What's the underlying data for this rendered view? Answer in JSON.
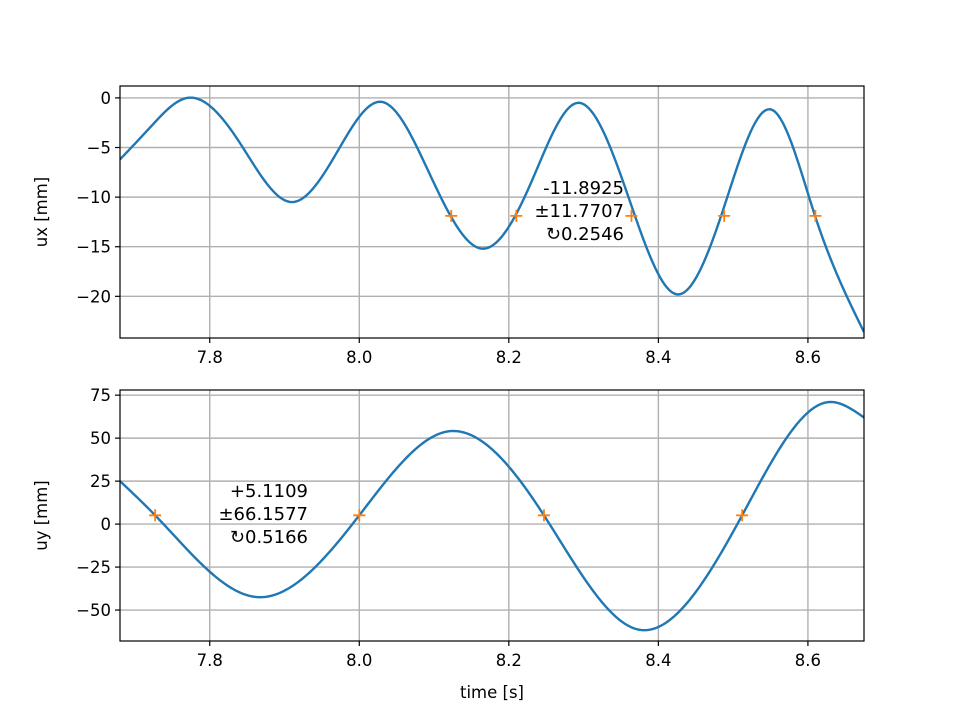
{
  "colors": {
    "curve": "#1f77b4",
    "marker": "#ff7f0e",
    "grid": "#b0b0b0"
  },
  "chart_data": [
    {
      "type": "line",
      "ylabel": "ux [mm]",
      "xlabel": "",
      "xlim": [
        7.68,
        8.675
      ],
      "ylim": [
        -24.2,
        1.2
      ],
      "grid": true,
      "xticks": [
        7.8,
        8.0,
        8.2,
        8.4,
        8.6
      ],
      "yticks": [
        0,
        -5,
        -10,
        -15,
        -20
      ],
      "xtick_labels": [
        "7.8",
        "8.0",
        "8.2",
        "8.4",
        "8.6"
      ],
      "ytick_labels": [
        "0",
        "−5",
        "−10",
        "−15",
        "−20"
      ],
      "series": [
        {
          "x": [
            7.68,
            7.72,
            7.77,
            7.84,
            7.91,
            7.97,
            8.03,
            8.09,
            8.165,
            8.23,
            8.292,
            8.36,
            8.425,
            8.49,
            8.552,
            8.61,
            8.675
          ],
          "values": [
            -6.2,
            -3.0,
            0.0,
            -4.5,
            -10.5,
            -5.5,
            -0.4,
            -7.0,
            -15.2,
            -8.5,
            -0.5,
            -10.0,
            -19.8,
            -10.5,
            -1.2,
            -12.0,
            -23.6
          ]
        }
      ],
      "markers": {
        "x": [
          8.123,
          8.21,
          8.364,
          8.488,
          8.61
        ],
        "y": [
          -11.8925,
          -11.8925,
          -11.8925,
          -11.8925,
          -11.8925
        ]
      },
      "annotation": {
        "lines": [
          "-11.8925",
          "±11.7707",
          "↻0.2546"
        ]
      }
    },
    {
      "type": "line",
      "ylabel": "uy [mm]",
      "xlabel": "time [s]",
      "xlim": [
        7.68,
        8.675
      ],
      "ylim": [
        -68,
        78
      ],
      "grid": true,
      "xticks": [
        7.8,
        8.0,
        8.2,
        8.4,
        8.6
      ],
      "yticks": [
        75,
        50,
        25,
        0,
        -25,
        -50
      ],
      "xtick_labels": [
        "7.8",
        "8.0",
        "8.2",
        "8.4",
        "8.6"
      ],
      "ytick_labels": [
        "75",
        "50",
        "25",
        "0",
        "−25",
        "−50"
      ],
      "series": [
        {
          "x": [
            7.68,
            7.727,
            7.865,
            8.0,
            8.12,
            8.247,
            8.375,
            8.512,
            8.628,
            8.675
          ],
          "values": [
            25.0,
            5.1,
            -42.5,
            5.1,
            54.0,
            5.1,
            -61.5,
            5.1,
            71.0,
            62.0
          ]
        }
      ],
      "markers": {
        "x": [
          7.727,
          8.0,
          8.247,
          8.512
        ],
        "y": [
          5.1109,
          5.1109,
          5.1109,
          5.1109
        ]
      },
      "annotation": {
        "lines": [
          "+5.1109",
          "±66.1577",
          "↻0.5166"
        ]
      }
    }
  ]
}
